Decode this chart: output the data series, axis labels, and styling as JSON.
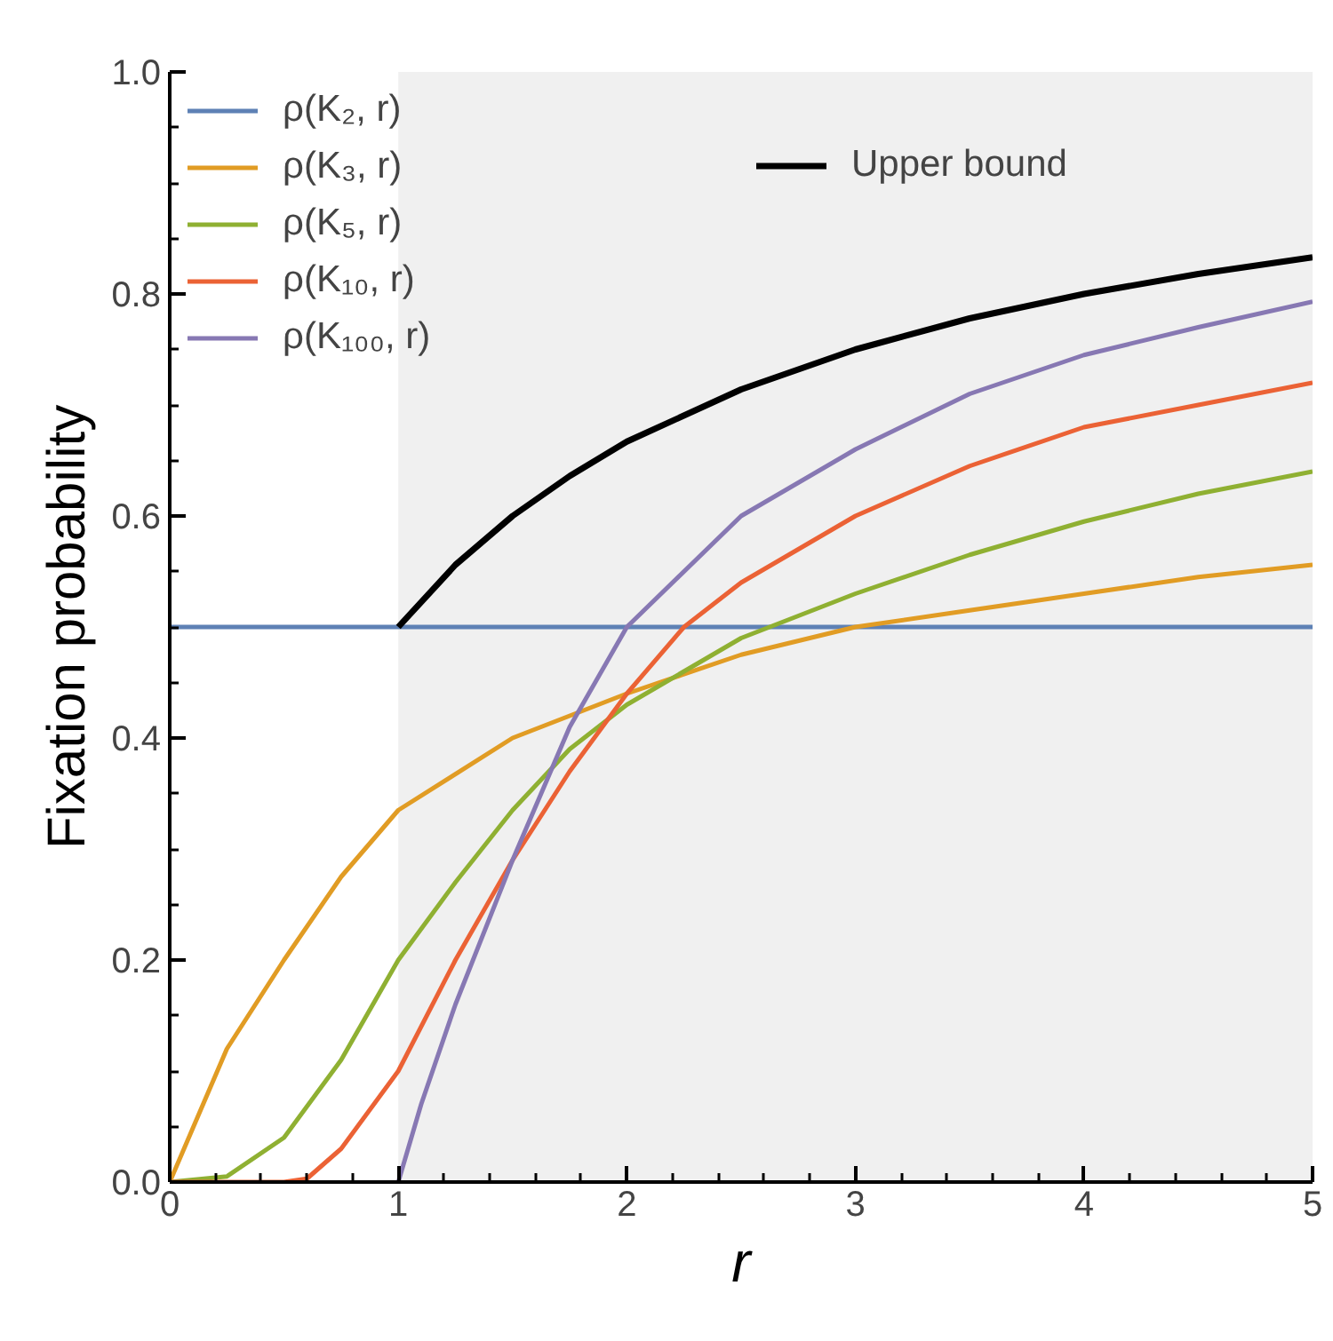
{
  "chart_data": {
    "type": "line",
    "xlabel": "r",
    "ylabel": "Fixation probability",
    "xlim": [
      0,
      5
    ],
    "ylim": [
      0,
      1.0
    ],
    "xticks": [
      0,
      1,
      2,
      3,
      4,
      5
    ],
    "yticks": [
      {
        "value": 0,
        "label": "0.0"
      },
      {
        "value": 0.2,
        "label": "0.2"
      },
      {
        "value": 0.4,
        "label": "0.4"
      },
      {
        "value": 0.6,
        "label": "0.6"
      },
      {
        "value": 0.8,
        "label": "0.8"
      },
      {
        "value": 1.0,
        "label": "1.0"
      }
    ],
    "grid": false,
    "legend": "top left",
    "marker": "none",
    "line_style": "solid",
    "bands": [
      {
        "axis": "x",
        "from": 1,
        "to": 5,
        "color": "#f0f0f0"
      }
    ],
    "series": [
      {
        "name": "ρ(K₂, r)",
        "color": "#5e81b5",
        "x": [
          0,
          5
        ],
        "values": [
          0.5,
          0.5
        ]
      },
      {
        "name": "ρ(K₃, r)",
        "color": "#e19c24",
        "x": [
          0,
          0.25,
          0.5,
          0.75,
          1,
          1.5,
          2,
          2.5,
          3,
          3.5,
          4,
          4.5,
          5
        ],
        "values": [
          0,
          0.12,
          0.2,
          0.275,
          0.335,
          0.4,
          0.44,
          0.475,
          0.5,
          0.515,
          0.53,
          0.545,
          0.556
        ]
      },
      {
        "name": "ρ(K₅, r)",
        "color": "#8fb032",
        "x": [
          0,
          0.25,
          0.5,
          0.75,
          1,
          1.25,
          1.5,
          1.75,
          2,
          2.5,
          3,
          3.5,
          4,
          4.5,
          5
        ],
        "values": [
          0,
          0.005,
          0.04,
          0.11,
          0.2,
          0.27,
          0.335,
          0.39,
          0.43,
          0.49,
          0.53,
          0.565,
          0.595,
          0.62,
          0.64
        ]
      },
      {
        "name": "ρ(K₁₀, r)",
        "color": "#eb6235",
        "x": [
          0,
          0.5,
          0.6,
          0.75,
          1,
          1.25,
          1.5,
          1.75,
          2,
          2.25,
          2.5,
          3,
          3.5,
          4,
          4.5,
          5
        ],
        "values": [
          0,
          0,
          0.003,
          0.03,
          0.1,
          0.2,
          0.29,
          0.37,
          0.44,
          0.5,
          0.54,
          0.6,
          0.645,
          0.68,
          0.7,
          0.72
        ]
      },
      {
        "name": "ρ(K₁₀₀, r)",
        "color": "#8778b3",
        "x": [
          1,
          1.1,
          1.25,
          1.5,
          1.75,
          2,
          2.5,
          3,
          3.5,
          4,
          4.5,
          5
        ],
        "values": [
          0,
          0.07,
          0.16,
          0.29,
          0.41,
          0.5,
          0.6,
          0.66,
          0.71,
          0.745,
          0.77,
          0.793
        ]
      },
      {
        "name": "Upper bound",
        "color": "#000000",
        "x": [
          1,
          1.25,
          1.5,
          1.75,
          2,
          2.5,
          3,
          3.5,
          4,
          4.5,
          5
        ],
        "values": [
          0.5,
          0.556,
          0.6,
          0.636,
          0.667,
          0.714,
          0.75,
          0.778,
          0.8,
          0.818,
          0.833
        ]
      }
    ]
  }
}
